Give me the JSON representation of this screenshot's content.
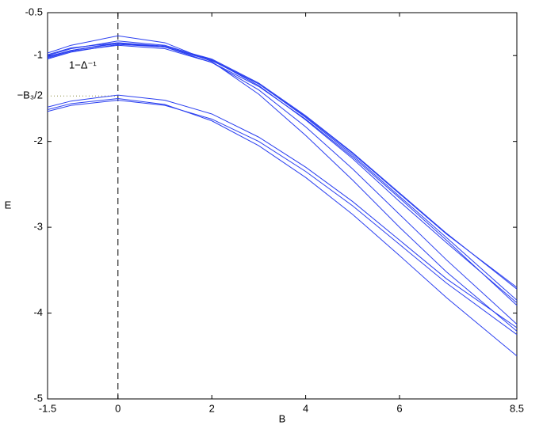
{
  "chart_data": {
    "type": "line",
    "xlabel": "B",
    "ylabel": "E",
    "color": "#2a3ff0",
    "x": [
      -1.5,
      -1,
      0,
      1,
      2,
      3,
      4,
      5,
      6,
      7,
      8.5
    ],
    "series": [
      {
        "values": [
          -0.97,
          -0.88,
          -0.77,
          -0.85,
          -1.07,
          -1.45,
          -1.93,
          -2.45,
          -3.0,
          -3.52,
          -4.21
        ]
      },
      {
        "values": [
          -1.0,
          -0.92,
          -0.83,
          -0.88,
          -1.05,
          -1.35,
          -1.75,
          -2.2,
          -2.7,
          -3.18,
          -3.88
        ]
      },
      {
        "values": [
          -1.02,
          -0.94,
          -0.85,
          -0.89,
          -1.04,
          -1.32,
          -1.7,
          -2.13,
          -2.6,
          -3.07,
          -3.72
        ]
      },
      {
        "values": [
          -1.04,
          -0.96,
          -0.87,
          -0.9,
          -1.05,
          -1.33,
          -1.72,
          -2.16,
          -2.64,
          -3.12,
          -3.85
        ]
      },
      {
        "values": [
          -0.99,
          -0.91,
          -0.85,
          -0.9,
          -1.08,
          -1.4,
          -1.83,
          -2.32,
          -2.85,
          -3.38,
          -4.13
        ]
      },
      {
        "values": [
          -1.03,
          -0.95,
          -0.88,
          -0.92,
          -1.08,
          -1.36,
          -1.74,
          -2.18,
          -2.66,
          -3.15,
          -3.91
        ]
      },
      {
        "values": [
          -1.01,
          -0.94,
          -0.86,
          -0.9,
          -1.06,
          -1.33,
          -1.71,
          -2.14,
          -2.61,
          -3.08,
          -3.7
        ]
      },
      {
        "values": [
          -1.6,
          -1.53,
          -1.46,
          -1.52,
          -1.68,
          -1.95,
          -2.3,
          -2.7,
          -3.15,
          -3.6,
          -4.17
        ]
      },
      {
        "values": [
          -1.63,
          -1.56,
          -1.5,
          -1.57,
          -1.76,
          -2.05,
          -2.42,
          -2.85,
          -3.33,
          -3.82,
          -4.5
        ]
      },
      {
        "values": [
          -1.65,
          -1.58,
          -1.52,
          -1.58,
          -1.74,
          -2.0,
          -2.35,
          -2.75,
          -3.2,
          -3.65,
          -4.25
        ]
      }
    ],
    "xlim": [
      -1.5,
      8.5
    ],
    "xticks": [
      -1.5,
      0,
      2,
      4,
      6,
      8.5
    ],
    "ylim": [
      -5,
      -0.5
    ],
    "yticks": [
      -5,
      -4,
      -3,
      -2,
      -1,
      -0.5
    ],
    "vline_x": 0,
    "reference_line": {
      "y": -1.47,
      "label": "−B₃/2"
    },
    "annotation": {
      "text": "1−Δ⁻¹",
      "x": -0.75,
      "y": -1.12
    }
  }
}
